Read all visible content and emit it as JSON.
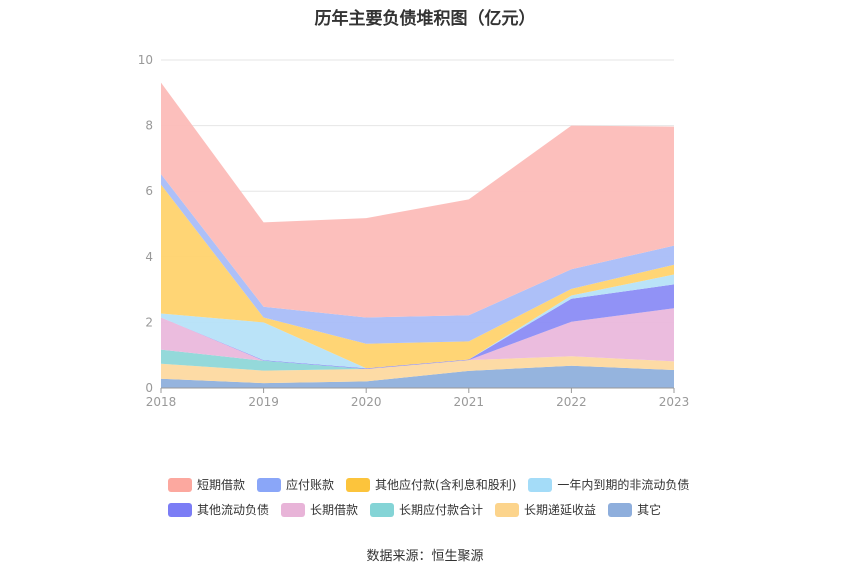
{
  "title": "历年主要负债堆积图（亿元）",
  "source_label": "数据来源：恒生聚源",
  "chart_data": {
    "type": "area",
    "stacked": true,
    "title": "历年主要负债堆积图（亿元）",
    "xlabel": "",
    "ylabel": "",
    "ylim": [
      0,
      10
    ],
    "yticks": [
      0,
      2,
      4,
      6,
      8,
      10
    ],
    "grid": true,
    "legend_position": "bottom",
    "categories": [
      "2018",
      "2019",
      "2020",
      "2021",
      "2022",
      "2023"
    ],
    "series": [
      {
        "name": "其它",
        "color": "#8fb0dc",
        "values": [
          0.28,
          0.15,
          0.2,
          0.52,
          0.68,
          0.55
        ]
      },
      {
        "name": "长期递延收益",
        "color": "#fdd9a0",
        "values": [
          0.46,
          0.38,
          0.38,
          0.33,
          0.29,
          0.26
        ]
      },
      {
        "name": "长期应付款合计",
        "color": "#8ed7d8",
        "values": [
          0.43,
          0.3,
          0.0,
          0.0,
          0.0,
          0.0
        ]
      },
      {
        "name": "长期借款",
        "color": "#eab8dc",
        "values": [
          0.98,
          0.0,
          0.0,
          0.0,
          1.05,
          1.62
        ]
      },
      {
        "name": "其他流动负债",
        "color": "#8b8cf5",
        "values": [
          0.0,
          0.02,
          0.02,
          0.02,
          0.7,
          0.73
        ]
      },
      {
        "name": "一年内到期的非流动负债",
        "color": "#b6e2f8",
        "values": [
          0.12,
          1.15,
          0.0,
          0.0,
          0.1,
          0.3
        ]
      },
      {
        "name": "其他应付款(含利息和股利)",
        "color": "#ffd36e",
        "values": [
          3.93,
          0.15,
          0.75,
          0.55,
          0.2,
          0.3
        ]
      },
      {
        "name": "应付账款",
        "color": "#a9bdf8",
        "values": [
          0.32,
          0.33,
          0.8,
          0.8,
          0.6,
          0.58
        ]
      },
      {
        "name": "短期借款",
        "color": "#fcbcb8",
        "values": [
          2.79,
          2.57,
          3.03,
          3.53,
          4.38,
          3.63
        ]
      }
    ]
  },
  "legend": {
    "row1": [
      {
        "label": "短期借款",
        "color": "#fca89f"
      },
      {
        "label": "应付账款",
        "color": "#8aa6f8"
      },
      {
        "label": "其他应付款(含利息和股利)",
        "color": "#fcc43c"
      },
      {
        "label": "一年内到期的非流动负债",
        "color": "#a4dcf8"
      }
    ],
    "row2": [
      {
        "label": "其他流动负债",
        "color": "#7b7df5"
      },
      {
        "label": "长期借款",
        "color": "#e8b4d8"
      },
      {
        "label": "长期应付款合计",
        "color": "#84d4d6"
      },
      {
        "label": "长期递延收益",
        "color": "#fcd48c"
      },
      {
        "label": "其它",
        "color": "#8eaedc"
      }
    ]
  }
}
